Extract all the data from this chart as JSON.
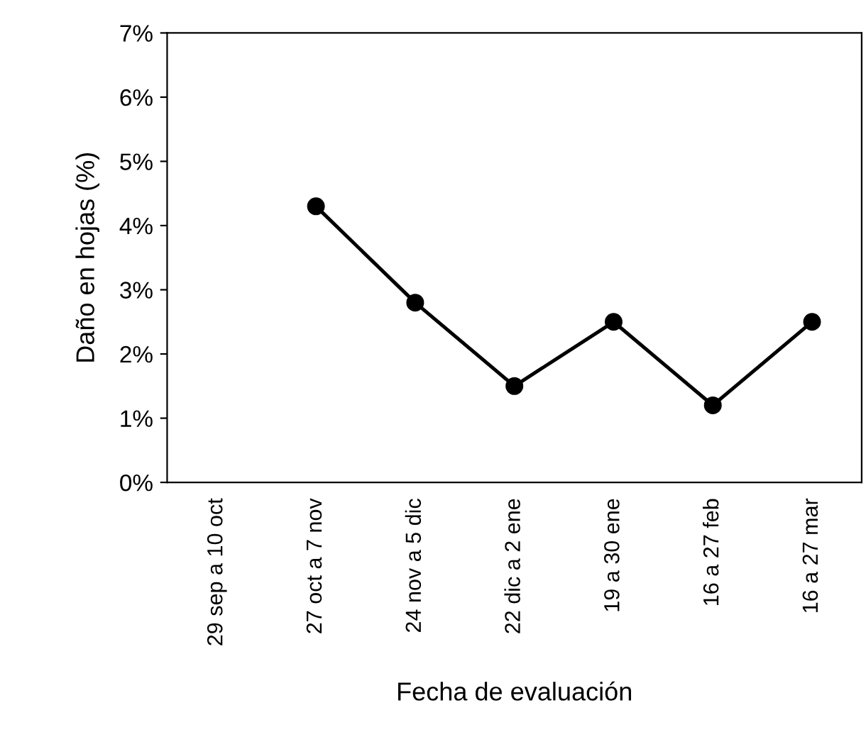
{
  "chart_data": {
    "type": "line",
    "xlabel": "Fecha de evaluación",
    "ylabel": "Daño en hojas (%)",
    "categories": [
      "29 sep a 10 oct",
      "27 oct a 7 nov",
      "24 nov a 5 dic",
      "22 dic a 2 ene",
      "19 a 30 ene",
      "16 a 27 feb",
      "16 a 27 mar"
    ],
    "series": [
      {
        "color": "#000000",
        "values": [
          null,
          4.3,
          2.8,
          1.5,
          2.5,
          1.2,
          2.5
        ]
      }
    ],
    "ylim": [
      0,
      7
    ],
    "yticks": [
      {
        "value": 0,
        "label": "0%"
      },
      {
        "value": 1,
        "label": "1%"
      },
      {
        "value": 2,
        "label": "2%"
      },
      {
        "value": 3,
        "label": "3%"
      },
      {
        "value": 4,
        "label": "4%"
      },
      {
        "value": 5,
        "label": "5%"
      },
      {
        "value": 6,
        "label": "6%"
      },
      {
        "value": 7,
        "label": "7%"
      }
    ],
    "marker": "circle",
    "line_style": "solid",
    "grid": false,
    "legend": false
  }
}
